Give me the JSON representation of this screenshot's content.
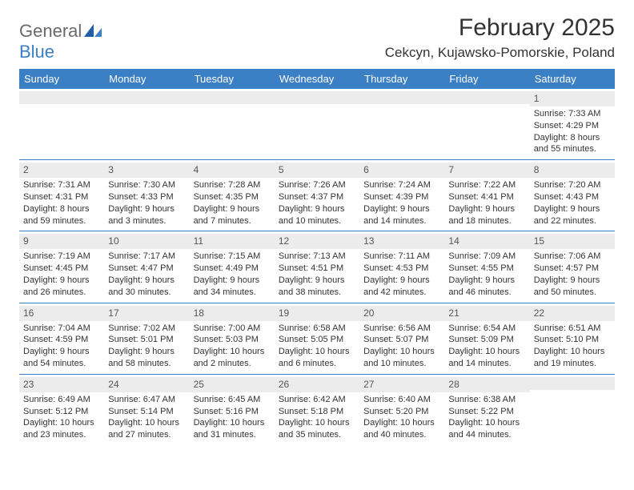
{
  "logo": {
    "word1": "General",
    "word2": "Blue"
  },
  "title": "February 2025",
  "location": "Cekcyn, Kujawsko-Pomorskie, Poland",
  "colors": {
    "header_bar": "#3b7fc4",
    "band": "#ececec",
    "text": "#333333",
    "logo_gray": "#6a6a6a",
    "logo_blue": "#3b7fc4",
    "rule": "#3b7fc4"
  },
  "dow": [
    "Sunday",
    "Monday",
    "Tuesday",
    "Wednesday",
    "Thursday",
    "Friday",
    "Saturday"
  ],
  "weeks": [
    [
      {
        "n": "",
        "sr": "",
        "ss": "",
        "dl": ""
      },
      {
        "n": "",
        "sr": "",
        "ss": "",
        "dl": ""
      },
      {
        "n": "",
        "sr": "",
        "ss": "",
        "dl": ""
      },
      {
        "n": "",
        "sr": "",
        "ss": "",
        "dl": ""
      },
      {
        "n": "",
        "sr": "",
        "ss": "",
        "dl": ""
      },
      {
        "n": "",
        "sr": "",
        "ss": "",
        "dl": ""
      },
      {
        "n": "1",
        "sr": "Sunrise: 7:33 AM",
        "ss": "Sunset: 4:29 PM",
        "dl": "Daylight: 8 hours and 55 minutes."
      }
    ],
    [
      {
        "n": "2",
        "sr": "Sunrise: 7:31 AM",
        "ss": "Sunset: 4:31 PM",
        "dl": "Daylight: 8 hours and 59 minutes."
      },
      {
        "n": "3",
        "sr": "Sunrise: 7:30 AM",
        "ss": "Sunset: 4:33 PM",
        "dl": "Daylight: 9 hours and 3 minutes."
      },
      {
        "n": "4",
        "sr": "Sunrise: 7:28 AM",
        "ss": "Sunset: 4:35 PM",
        "dl": "Daylight: 9 hours and 7 minutes."
      },
      {
        "n": "5",
        "sr": "Sunrise: 7:26 AM",
        "ss": "Sunset: 4:37 PM",
        "dl": "Daylight: 9 hours and 10 minutes."
      },
      {
        "n": "6",
        "sr": "Sunrise: 7:24 AM",
        "ss": "Sunset: 4:39 PM",
        "dl": "Daylight: 9 hours and 14 minutes."
      },
      {
        "n": "7",
        "sr": "Sunrise: 7:22 AM",
        "ss": "Sunset: 4:41 PM",
        "dl": "Daylight: 9 hours and 18 minutes."
      },
      {
        "n": "8",
        "sr": "Sunrise: 7:20 AM",
        "ss": "Sunset: 4:43 PM",
        "dl": "Daylight: 9 hours and 22 minutes."
      }
    ],
    [
      {
        "n": "9",
        "sr": "Sunrise: 7:19 AM",
        "ss": "Sunset: 4:45 PM",
        "dl": "Daylight: 9 hours and 26 minutes."
      },
      {
        "n": "10",
        "sr": "Sunrise: 7:17 AM",
        "ss": "Sunset: 4:47 PM",
        "dl": "Daylight: 9 hours and 30 minutes."
      },
      {
        "n": "11",
        "sr": "Sunrise: 7:15 AM",
        "ss": "Sunset: 4:49 PM",
        "dl": "Daylight: 9 hours and 34 minutes."
      },
      {
        "n": "12",
        "sr": "Sunrise: 7:13 AM",
        "ss": "Sunset: 4:51 PM",
        "dl": "Daylight: 9 hours and 38 minutes."
      },
      {
        "n": "13",
        "sr": "Sunrise: 7:11 AM",
        "ss": "Sunset: 4:53 PM",
        "dl": "Daylight: 9 hours and 42 minutes."
      },
      {
        "n": "14",
        "sr": "Sunrise: 7:09 AM",
        "ss": "Sunset: 4:55 PM",
        "dl": "Daylight: 9 hours and 46 minutes."
      },
      {
        "n": "15",
        "sr": "Sunrise: 7:06 AM",
        "ss": "Sunset: 4:57 PM",
        "dl": "Daylight: 9 hours and 50 minutes."
      }
    ],
    [
      {
        "n": "16",
        "sr": "Sunrise: 7:04 AM",
        "ss": "Sunset: 4:59 PM",
        "dl": "Daylight: 9 hours and 54 minutes."
      },
      {
        "n": "17",
        "sr": "Sunrise: 7:02 AM",
        "ss": "Sunset: 5:01 PM",
        "dl": "Daylight: 9 hours and 58 minutes."
      },
      {
        "n": "18",
        "sr": "Sunrise: 7:00 AM",
        "ss": "Sunset: 5:03 PM",
        "dl": "Daylight: 10 hours and 2 minutes."
      },
      {
        "n": "19",
        "sr": "Sunrise: 6:58 AM",
        "ss": "Sunset: 5:05 PM",
        "dl": "Daylight: 10 hours and 6 minutes."
      },
      {
        "n": "20",
        "sr": "Sunrise: 6:56 AM",
        "ss": "Sunset: 5:07 PM",
        "dl": "Daylight: 10 hours and 10 minutes."
      },
      {
        "n": "21",
        "sr": "Sunrise: 6:54 AM",
        "ss": "Sunset: 5:09 PM",
        "dl": "Daylight: 10 hours and 14 minutes."
      },
      {
        "n": "22",
        "sr": "Sunrise: 6:51 AM",
        "ss": "Sunset: 5:10 PM",
        "dl": "Daylight: 10 hours and 19 minutes."
      }
    ],
    [
      {
        "n": "23",
        "sr": "Sunrise: 6:49 AM",
        "ss": "Sunset: 5:12 PM",
        "dl": "Daylight: 10 hours and 23 minutes."
      },
      {
        "n": "24",
        "sr": "Sunrise: 6:47 AM",
        "ss": "Sunset: 5:14 PM",
        "dl": "Daylight: 10 hours and 27 minutes."
      },
      {
        "n": "25",
        "sr": "Sunrise: 6:45 AM",
        "ss": "Sunset: 5:16 PM",
        "dl": "Daylight: 10 hours and 31 minutes."
      },
      {
        "n": "26",
        "sr": "Sunrise: 6:42 AM",
        "ss": "Sunset: 5:18 PM",
        "dl": "Daylight: 10 hours and 35 minutes."
      },
      {
        "n": "27",
        "sr": "Sunrise: 6:40 AM",
        "ss": "Sunset: 5:20 PM",
        "dl": "Daylight: 10 hours and 40 minutes."
      },
      {
        "n": "28",
        "sr": "Sunrise: 6:38 AM",
        "ss": "Sunset: 5:22 PM",
        "dl": "Daylight: 10 hours and 44 minutes."
      },
      {
        "n": "",
        "sr": "",
        "ss": "",
        "dl": ""
      }
    ]
  ]
}
